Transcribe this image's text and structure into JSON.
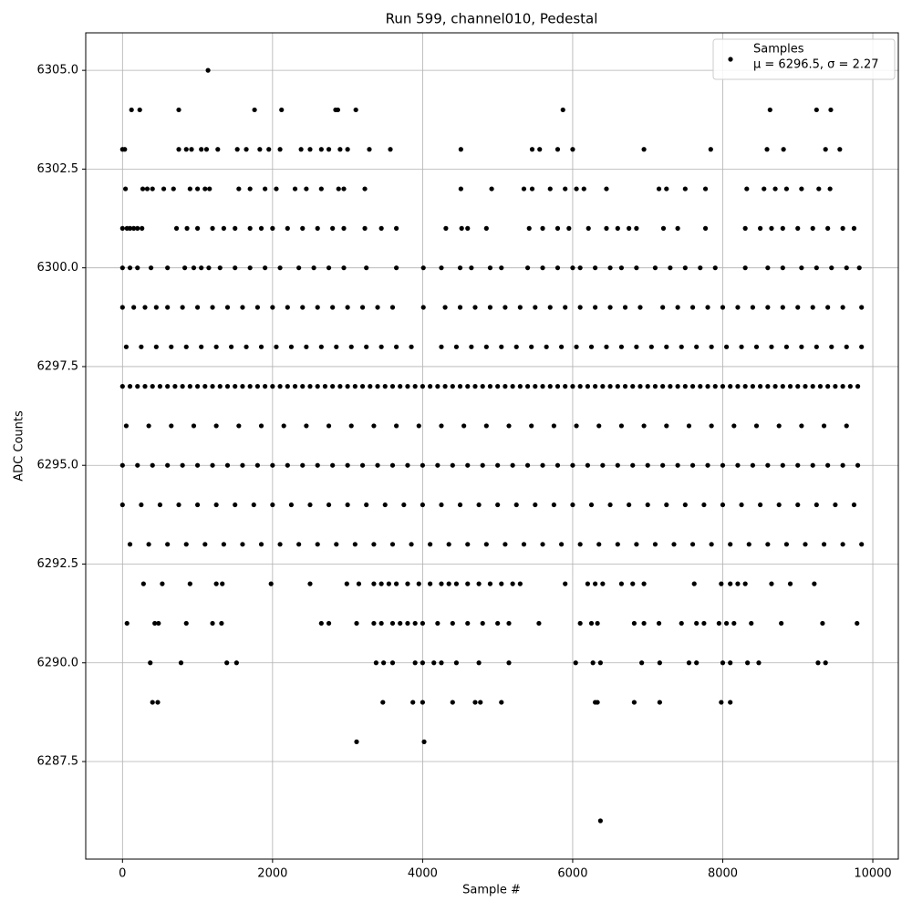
{
  "chart_data": {
    "type": "scatter",
    "title": "Run 599, channel010, Pedestal",
    "x_label": "Sample #",
    "y_label": "ADC Counts",
    "xlim": [
      -490,
      10340
    ],
    "ylim": [
      6285.03,
      6305.95
    ],
    "xticks": [
      0,
      2000,
      4000,
      6000,
      8000,
      10000
    ],
    "yticks": [
      {
        "value": 6287.5,
        "label": "6287.5"
      },
      {
        "value": 6290,
        "label": "6290.0"
      },
      {
        "value": 6292.5,
        "label": "6292.5"
      },
      {
        "value": 6295,
        "label": "6295.0"
      },
      {
        "value": 6297.5,
        "label": "6297.5"
      },
      {
        "value": 6300,
        "label": "6300.0"
      },
      {
        "value": 6302.5,
        "label": "6302.5"
      },
      {
        "value": 6305,
        "label": "6305.0"
      }
    ],
    "grid": true,
    "legend": "upper right",
    "series": [
      {
        "name": "Samples",
        "label": "μ = 6296.5, σ = 2.27",
        "color": "#000000",
        "rows": [
          {
            "y": 6305,
            "x": [
              1140
            ]
          },
          {
            "y": 6304,
            "x": [
              120,
              230,
              750,
              1760,
              2120,
              2840,
              2870,
              3110,
              5870,
              8630,
              9250,
              9440
            ]
          },
          {
            "y": 6303,
            "x": [
              0,
              30,
              750,
              850,
              920,
              1050,
              1120,
              1270,
              1530,
              1650,
              1830,
              1950,
              2100,
              2380,
              2500,
              2650,
              2750,
              2900,
              3000,
              3290,
              3570,
              4510,
              5460,
              5560,
              5800,
              6000,
              6950,
              7840,
              8590,
              8810,
              9370,
              9560
            ]
          },
          {
            "y": 6302,
            "x": [
              40,
              270,
              330,
              400,
              550,
              680,
              900,
              1000,
              1100,
              1160,
              1550,
              1700,
              1900,
              2050,
              2300,
              2450,
              2650,
              2880,
              2950,
              3230,
              4510,
              4920,
              5350,
              5460,
              5700,
              5900,
              6050,
              6150,
              6450,
              7150,
              7250,
              7500,
              7770,
              8320,
              8550,
              8700,
              8850,
              9050,
              9280,
              9430
            ]
          },
          {
            "y": 6301,
            "x": [
              0,
              60,
              100,
              150,
              200,
              260,
              720,
              860,
              1000,
              1200,
              1350,
              1500,
              1700,
              1850,
              2000,
              2200,
              2400,
              2600,
              2800,
              2950,
              3230,
              3450,
              3650,
              4310,
              4520,
              4600,
              4850,
              5420,
              5600,
              5800,
              5950,
              6210,
              6450,
              6600,
              6750,
              6850,
              7210,
              7400,
              7770,
              8300,
              8500,
              8650,
              8800,
              9000,
              9200,
              9400,
              9600,
              9750
            ]
          },
          {
            "y": 6300,
            "x": [
              0,
              100,
              200,
              380,
              600,
              830,
              950,
              1050,
              1150,
              1300,
              1500,
              1700,
              1900,
              2100,
              2350,
              2550,
              2750,
              2950,
              3250,
              3650,
              4010,
              4250,
              4500,
              4650,
              4900,
              5050,
              5400,
              5600,
              5800,
              6000,
              6100,
              6300,
              6500,
              6650,
              6850,
              7100,
              7300,
              7500,
              7700,
              7900,
              8300,
              8600,
              8800,
              9050,
              9250,
              9450,
              9650,
              9820
            ]
          },
          {
            "y": 6299,
            "x": [
              0,
              150,
              300,
              450,
              600,
              800,
              1000,
              1200,
              1400,
              1600,
              1800,
              2000,
              2200,
              2400,
              2600,
              2800,
              3000,
              3200,
              3400,
              3600,
              4010,
              4300,
              4500,
              4700,
              4900,
              5100,
              5300,
              5500,
              5700,
              5900,
              6100,
              6300,
              6500,
              6700,
              6900,
              7200,
              7400,
              7600,
              7800,
              8000,
              8200,
              8400,
              8600,
              8800,
              9000,
              9200,
              9400,
              9600,
              9850
            ]
          },
          {
            "y": 6298,
            "x": [
              50,
              250,
              450,
              650,
              850,
              1050,
              1250,
              1450,
              1650,
              1850,
              2050,
              2250,
              2450,
              2650,
              2850,
              3050,
              3250,
              3450,
              3650,
              3850,
              4250,
              4450,
              4650,
              4850,
              5050,
              5250,
              5450,
              5650,
              5850,
              6050,
              6250,
              6450,
              6650,
              6850,
              7050,
              7250,
              7450,
              7650,
              7850,
              8050,
              8250,
              8450,
              8650,
              8850,
              9050,
              9250,
              9450,
              9650,
              9850
            ]
          },
          {
            "y": 6297,
            "x": [
              0,
              100,
              200,
              300,
              400,
              500,
              600,
              700,
              800,
              900,
              1000,
              1100,
              1200,
              1300,
              1400,
              1500,
              1600,
              1700,
              1800,
              1900,
              2000,
              2100,
              2200,
              2300,
              2400,
              2500,
              2600,
              2700,
              2800,
              2900,
              3000,
              3100,
              3200,
              3300,
              3400,
              3500,
              3600,
              3700,
              3800,
              3900,
              4000,
              4100,
              4200,
              4300,
              4400,
              4500,
              4600,
              4700,
              4800,
              4900,
              5000,
              5100,
              5200,
              5300,
              5400,
              5500,
              5600,
              5700,
              5800,
              5900,
              6000,
              6100,
              6200,
              6300,
              6400,
              6500,
              6600,
              6700,
              6800,
              6900,
              7000,
              7100,
              7200,
              7300,
              7400,
              7500,
              7600,
              7700,
              7800,
              7900,
              8000,
              8100,
              8200,
              8300,
              8400,
              8500,
              8600,
              8700,
              8800,
              8900,
              9000,
              9100,
              9200,
              9300,
              9400,
              9500,
              9600,
              9700,
              9800
            ]
          },
          {
            "y": 6296,
            "x": [
              50,
              350,
              650,
              950,
              1250,
              1550,
              1850,
              2150,
              2450,
              2750,
              3050,
              3350,
              3650,
              3950,
              4250,
              4550,
              4850,
              5150,
              5450,
              5750,
              6050,
              6350,
              6650,
              6950,
              7250,
              7550,
              7850,
              8150,
              8450,
              8750,
              9050,
              9350,
              9650
            ]
          },
          {
            "y": 6295,
            "x": [
              0,
              200,
              400,
              600,
              800,
              1000,
              1200,
              1400,
              1600,
              1800,
              2000,
              2200,
              2400,
              2600,
              2800,
              3000,
              3200,
              3400,
              3600,
              3800,
              4000,
              4200,
              4400,
              4600,
              4800,
              5000,
              5200,
              5400,
              5600,
              5800,
              6000,
              6200,
              6400,
              6600,
              6800,
              7000,
              7200,
              7400,
              7600,
              7800,
              8000,
              8200,
              8400,
              8600,
              8800,
              9000,
              9200,
              9400,
              9600,
              9800
            ]
          },
          {
            "y": 6294,
            "x": [
              0,
              250,
              500,
              750,
              1000,
              1250,
              1500,
              1750,
              2000,
              2250,
              2500,
              2750,
              3000,
              3250,
              3500,
              3750,
              4000,
              4250,
              4500,
              4750,
              5000,
              5250,
              5500,
              5750,
              6000,
              6250,
              6500,
              6750,
              7000,
              7250,
              7500,
              7750,
              8000,
              8250,
              8500,
              8750,
              9000,
              9250,
              9500,
              9750
            ]
          },
          {
            "y": 6293,
            "x": [
              100,
              350,
              600,
              850,
              1100,
              1350,
              1600,
              1850,
              2100,
              2350,
              2600,
              2850,
              3100,
              3350,
              3600,
              3850,
              4100,
              4350,
              4600,
              4850,
              5100,
              5350,
              5600,
              5850,
              6100,
              6350,
              6600,
              6850,
              7100,
              7350,
              7600,
              7850,
              8100,
              8350,
              8600,
              8850,
              9100,
              9350,
              9600,
              9850
            ]
          },
          {
            "y": 6292,
            "x": [
              280,
              530,
              900,
              1250,
              1330,
              1980,
              2500,
              2990,
              3150,
              3350,
              3450,
              3550,
              3650,
              3800,
              3950,
              4100,
              4250,
              4350,
              4450,
              4600,
              4750,
              4900,
              5050,
              5200,
              5300,
              5900,
              6200,
              6300,
              6400,
              6650,
              6800,
              6950,
              7620,
              7980,
              8100,
              8200,
              8300,
              8650,
              8900,
              9220
            ]
          },
          {
            "y": 6291,
            "x": [
              60,
              430,
              480,
              850,
              1200,
              1320,
              2650,
              2750,
              3120,
              3350,
              3450,
              3600,
              3700,
              3800,
              3900,
              4000,
              4200,
              4400,
              4600,
              4800,
              5000,
              5150,
              5550,
              6100,
              6250,
              6330,
              6820,
              6950,
              7150,
              7450,
              7650,
              7750,
              7950,
              8050,
              8150,
              8380,
              8780,
              9330,
              9790
            ]
          },
          {
            "y": 6290,
            "x": [
              370,
              780,
              1390,
              1520,
              3380,
              3480,
              3600,
              3900,
              4000,
              4150,
              4250,
              4450,
              4750,
              5150,
              6040,
              6270,
              6370,
              6920,
              7160,
              7550,
              7650,
              8000,
              8100,
              8330,
              8480,
              9270,
              9370
            ]
          },
          {
            "y": 6289,
            "x": [
              400,
              470,
              3470,
              3870,
              4000,
              4400,
              4700,
              4770,
              5050,
              6300,
              6330,
              6820,
              7160,
              7980,
              8100
            ]
          },
          {
            "y": 6288,
            "x": [
              3120,
              4020
            ]
          },
          {
            "y": 6286,
            "x": [
              6370
            ]
          }
        ]
      }
    ]
  }
}
